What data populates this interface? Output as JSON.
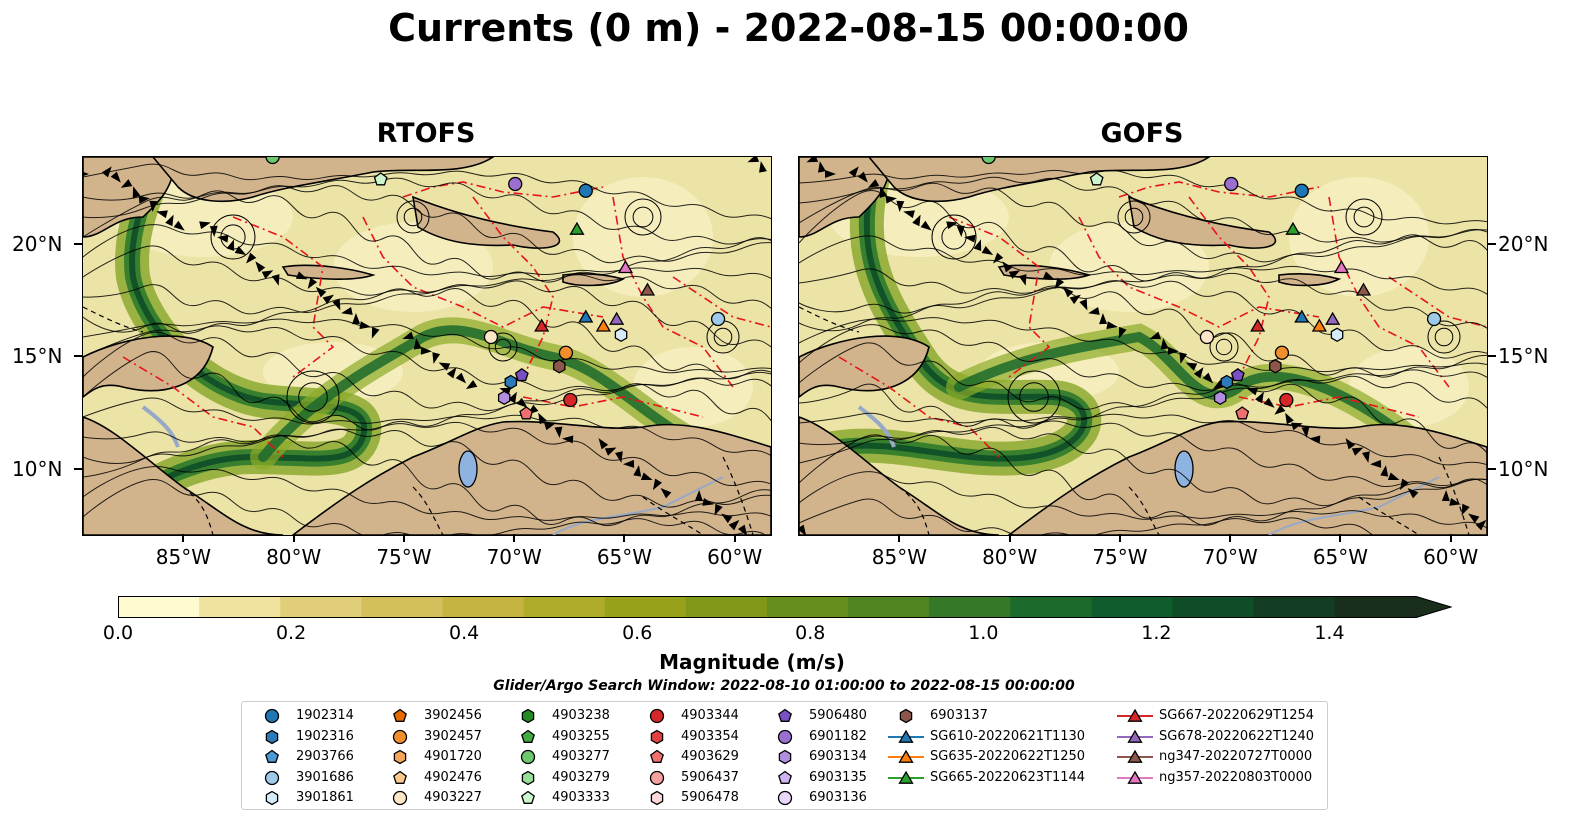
{
  "title": "Currents (0 m) - 2022-08-15 00:00:00",
  "panels": [
    {
      "title": "RTOFS"
    },
    {
      "title": "GOFS"
    }
  ],
  "lon_ticks": [
    "85°W",
    "80°W",
    "75°W",
    "70°W",
    "65°W",
    "60°W"
  ],
  "lon_values": [
    -85,
    -80,
    -75,
    -70,
    -65,
    -60
  ],
  "lat_ticks": [
    "20°N",
    "15°N",
    "10°N"
  ],
  "lat_values": [
    20,
    15,
    10
  ],
  "map_extent": {
    "lon_min": -89.6,
    "lon_max": -58.4,
    "lat_min": 7.1,
    "lat_max": 23.9
  },
  "colorbar": {
    "label": "Magnitude (m/s)",
    "ticks": [
      "0.0",
      "0.2",
      "0.4",
      "0.6",
      "0.8",
      "1.0",
      "1.2",
      "1.4"
    ],
    "tick_values": [
      0,
      0.2,
      0.4,
      0.6,
      0.8,
      1.0,
      1.2,
      1.4
    ],
    "range": [
      0,
      1.5
    ],
    "extend": "max",
    "colors": [
      "#fffbd0",
      "#f0e3a0",
      "#e0cf78",
      "#d3bf5c",
      "#c5b440",
      "#aeac2a",
      "#97a21a",
      "#7f9818",
      "#658e1c",
      "#4f8420",
      "#357928",
      "#1c6a2c",
      "#105c2c",
      "#0e4d28",
      "#123d22",
      "#192f1c"
    ]
  },
  "search_window": "Glider/Argo Search Window: 2022-08-10 01:00:00 to 2022-08-15 00:00:00",
  "legend": {
    "columns": [
      [
        {
          "label": "1902314",
          "marker": "circle",
          "color": "#1f77b4"
        },
        {
          "label": "1902316",
          "marker": "hexagon",
          "color": "#2b7bba"
        },
        {
          "label": "2903766",
          "marker": "pentagon",
          "color": "#4a9ad6"
        },
        {
          "label": "3901686",
          "marker": "circle",
          "color": "#9ecae9"
        },
        {
          "label": "3901861",
          "marker": "hexagon",
          "color": "#d6ebf8"
        }
      ],
      [
        {
          "label": "3902456",
          "marker": "pentagon",
          "color": "#e66a00"
        },
        {
          "label": "3902457",
          "marker": "circle",
          "color": "#f28e2c"
        },
        {
          "label": "4901720",
          "marker": "hexagon",
          "color": "#f7a558"
        },
        {
          "label": "4902476",
          "marker": "pentagon",
          "color": "#fbc98e"
        },
        {
          "label": "4903227",
          "marker": "circle",
          "color": "#fde6c8"
        }
      ],
      [
        {
          "label": "4903238",
          "marker": "hexagon",
          "color": "#238b22"
        },
        {
          "label": "4903255",
          "marker": "pentagon",
          "color": "#41ab41"
        },
        {
          "label": "4903277",
          "marker": "circle",
          "color": "#6cc86c"
        },
        {
          "label": "4903279",
          "marker": "hexagon",
          "color": "#98de98"
        },
        {
          "label": "4903333",
          "marker": "pentagon",
          "color": "#cdf5cd"
        }
      ],
      [
        {
          "label": "4903344",
          "marker": "circle",
          "color": "#d62728"
        },
        {
          "label": "4903354",
          "marker": "hexagon",
          "color": "#e0403f"
        },
        {
          "label": "4903629",
          "marker": "pentagon",
          "color": "#f07070"
        },
        {
          "label": "5906437",
          "marker": "circle",
          "color": "#f6a0a0"
        },
        {
          "label": "5906478",
          "marker": "hexagon",
          "color": "#fcd8d8"
        }
      ],
      [
        {
          "label": "5906480",
          "marker": "pentagon",
          "color": "#7b4fc4"
        },
        {
          "label": "6901182",
          "marker": "circle",
          "color": "#9a6fd0"
        },
        {
          "label": "6903134",
          "marker": "hexagon",
          "color": "#b18ee0"
        },
        {
          "label": "6903135",
          "marker": "pentagon",
          "color": "#cdb4ee"
        },
        {
          "label": "6903136",
          "marker": "circle",
          "color": "#ead8fb"
        }
      ],
      [
        {
          "label": "6903137",
          "marker": "hexagon",
          "color": "#8c564b"
        },
        {
          "label": "SG610-20220621T1130",
          "marker": "triangle",
          "color": "#1f77b4"
        },
        {
          "label": "SG635-20220622T1250",
          "marker": "triangle",
          "color": "#ff7f0e"
        },
        {
          "label": "SG665-20220623T1144",
          "marker": "triangle",
          "color": "#2ca02c"
        }
      ],
      [
        {
          "label": "SG667-20220629T1254",
          "marker": "triangle",
          "color": "#d62728"
        },
        {
          "label": "SG678-20220622T1240",
          "marker": "triangle",
          "color": "#9467bd"
        },
        {
          "label": "ng347-20220727T0000",
          "marker": "triangle",
          "color": "#8c564b"
        },
        {
          "label": "ng357-20220803T0000",
          "marker": "triangle",
          "color": "#e377c2"
        }
      ]
    ]
  },
  "floats": [
    {
      "id": "1902314",
      "lon": -66.8,
      "lat": 22.4
    },
    {
      "id": "1902316",
      "lon": -70.2,
      "lat": 13.9
    },
    {
      "id": "3901686",
      "lon": -60.8,
      "lat": 16.7
    },
    {
      "id": "3901861",
      "lon": -65.2,
      "lat": 16.0
    },
    {
      "id": "3902457",
      "lon": -67.7,
      "lat": 15.2
    },
    {
      "id": "4903227",
      "lon": -71.1,
      "lat": 15.9
    },
    {
      "id": "4903277",
      "lon": -81.0,
      "lat": 23.9
    },
    {
      "id": "4903333",
      "lon": -76.1,
      "lat": 22.9
    },
    {
      "id": "4903344",
      "lon": -67.5,
      "lat": 13.1
    },
    {
      "id": "4903629",
      "lon": -69.5,
      "lat": 12.5
    },
    {
      "id": "5906480",
      "lon": -69.7,
      "lat": 14.2
    },
    {
      "id": "6901182",
      "lon": -70.0,
      "lat": 22.7
    },
    {
      "id": "6903134",
      "lon": -70.5,
      "lat": 13.2
    },
    {
      "id": "6903137",
      "lon": -68.0,
      "lat": 14.6
    },
    {
      "id": "SG610-20220621T1130",
      "lon": -66.8,
      "lat": 16.8
    },
    {
      "id": "SG635-20220622T1250",
      "lon": -66.0,
      "lat": 16.4
    },
    {
      "id": "SG665-20220623T1144",
      "lon": -67.2,
      "lat": 20.7
    },
    {
      "id": "SG667-20220629T1254",
      "lon": -68.8,
      "lat": 16.4
    },
    {
      "id": "SG678-20220622T1240",
      "lon": -65.4,
      "lat": 16.7
    },
    {
      "id": "ng347-20220727T0000",
      "lon": -64.0,
      "lat": 18.0
    },
    {
      "id": "ng357-20220803T0000",
      "lon": -65.0,
      "lat": 19.0
    }
  ]
}
